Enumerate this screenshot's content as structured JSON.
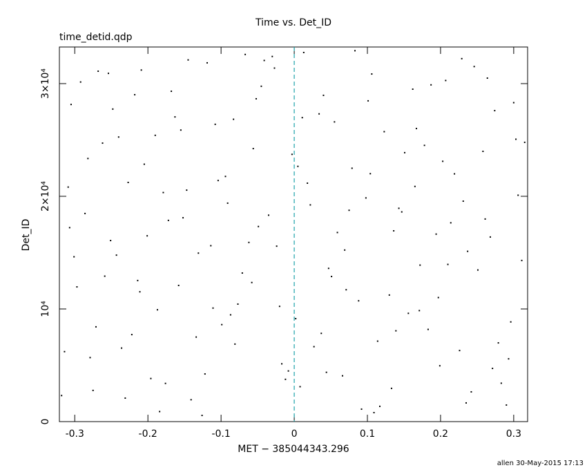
{
  "chart_data": {
    "type": "scatter",
    "title": "Time vs. Det_ID",
    "subtitle": "time_detid.qdp",
    "x_label": "MET − 385044343.296",
    "y_label": "Det_ID",
    "footer": "allen 30-May-2015 17:13",
    "xlim": [
      -0.321,
      0.319
    ],
    "ylim": [
      0,
      33250
    ],
    "xticks": [
      -0.3,
      -0.2,
      -0.1,
      0,
      0.1,
      0.2,
      0.3
    ],
    "yticks": [
      0,
      {
        "value": 10000,
        "label": "10⁴"
      },
      {
        "value": 20000,
        "label": "2×10⁴"
      },
      {
        "value": 30000,
        "label": "3×10⁴"
      }
    ],
    "grid": false,
    "reference_line_x": 0,
    "reference_line_color": "#1aa0a8",
    "color": "#000000",
    "x": [
      -0.318,
      -0.286,
      -0.254,
      -0.222,
      -0.19,
      -0.158,
      -0.126,
      -0.094,
      -0.062,
      -0.03,
      0.002,
      0.034,
      0.066,
      0.098,
      0.13,
      0.162,
      0.194,
      0.226,
      0.258,
      0.29,
      -0.305,
      -0.271,
      -0.243,
      -0.209,
      -0.176,
      -0.147,
      -0.111,
      -0.083,
      -0.049,
      -0.017,
      0.013,
      0.047,
      0.079,
      0.109,
      0.143,
      0.171,
      0.207,
      0.237,
      0.271,
      0.303,
      -0.297,
      -0.262,
      -0.231,
      -0.201,
      -0.168,
      -0.134,
      -0.104,
      -0.071,
      -0.041,
      -0.008,
      0.022,
      0.055,
      0.088,
      0.117,
      0.151,
      0.183,
      0.214,
      0.246,
      0.279,
      0.311,
      -0.309,
      -0.279,
      -0.248,
      -0.214,
      -0.184,
      -0.152,
      -0.119,
      -0.087,
      -0.056,
      -0.024,
      0.008,
      0.04,
      0.071,
      0.104,
      0.136,
      0.167,
      0.199,
      0.231,
      0.264,
      0.296,
      -0.301,
      -0.268,
      -0.236,
      -0.205,
      -0.172,
      -0.141,
      -0.108,
      -0.077,
      -0.045,
      -0.012,
      0.018,
      0.051,
      0.083,
      0.114,
      0.147,
      0.178,
      0.21,
      0.242,
      0.274,
      0.306,
      -0.314,
      -0.282,
      -0.251,
      -0.218,
      -0.187,
      -0.155,
      -0.122,
      -0.091,
      -0.058,
      -0.027,
      0.005,
      0.037,
      0.069,
      0.101,
      0.133,
      0.165,
      0.197,
      0.229,
      0.261,
      0.293,
      -0.292,
      -0.259,
      -0.227,
      -0.196,
      -0.163,
      -0.131,
      -0.099,
      -0.067,
      -0.035,
      -0.003,
      0.027,
      0.059,
      0.092,
      0.123,
      0.156,
      0.187,
      0.219,
      0.251,
      0.283,
      0.315,
      -0.307,
      -0.275,
      -0.24,
      -0.211,
      -0.179,
      -0.145,
      -0.114,
      -0.081,
      -0.052,
      -0.02,
      0.011,
      0.044,
      0.075,
      0.106,
      0.139,
      0.172,
      0.203,
      0.235,
      0.268,
      0.3
    ],
    "values": [
      2314,
      18472,
      30911,
      7723,
      25410,
      12087,
      549,
      21763,
      15902,
      32408,
      9140,
      27315,
      4068,
      19854,
      11236,
      29507,
      16643,
      6310,
      23988,
      1472,
      28150,
      8412,
      14777,
      31205,
      3391,
      20546,
      10078,
      26834,
      17316,
      5129,
      32761,
      13602,
      22489,
      798,
      18934,
      9855,
      30277,
      15114,
      4722,
      25063,
      11958,
      24719,
      2087,
      16490,
      29322,
      7506,
      21401,
      13188,
      32055,
      4497,
      19235,
      26602,
      10723,
      1356,
      23871,
      8184,
      17645,
      31516,
      6988,
      14302,
      20817,
      5684,
      27741,
      12522,
      893,
      18093,
      31844,
      9478,
      24233,
      15573,
      3102,
      28960,
      11704,
      22006,
      16934,
      26015,
      4956,
      19567,
      30489,
      8851,
      14630,
      31102,
      6527,
      22847,
      17859,
      1943,
      26388,
      10431,
      29766,
      3754,
      21164,
      12879,
      32920,
      7142,
      18613,
      24519,
      13953,
      2641,
      27602,
      20094,
      6212,
      23354,
      16071,
      29014,
      9926,
      25877,
      4231,
      19390,
      12345,
      31378,
      22655,
      7834,
      15228,
      28471,
      2952,
      20873,
      11011,
      32216,
      17983,
      5573,
      30142,
      12911,
      21228,
      3826,
      27044,
      14955,
      8609,
      32587,
      18321,
      23722,
      6653,
      16785,
      1108,
      25736,
      9612,
      29890,
      21990,
      13457,
      3409,
      24788,
      17217,
      2769,
      25259,
      11522,
      20332,
      32104,
      15615,
      6881,
      28655,
      10230,
      26981,
      4375,
      18757,
      30854,
      8062,
      13891,
      23105,
      1659,
      16386,
      28310
    ]
  }
}
